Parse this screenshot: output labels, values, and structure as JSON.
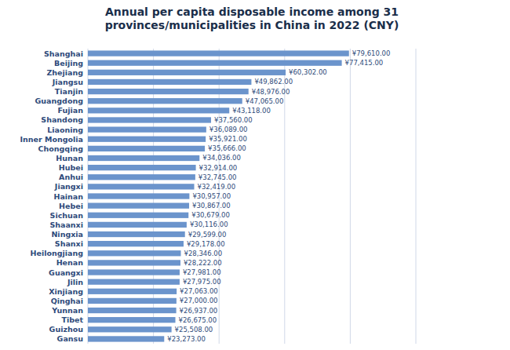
{
  "chart_data": {
    "type": "bar",
    "orientation": "horizontal",
    "title": "Annual per capita disposable income among 31\nprovinces/municipalities in China in 2022 (CNY)",
    "categories": [
      "Shanghai",
      "Beijing",
      "Zhejiang",
      "Jiangsu",
      "Tianjin",
      "Guangdong",
      "Fujian",
      "Shandong",
      "Liaoning",
      "Inner Mongolia",
      "Chongqing",
      "Hunan",
      "Hubei",
      "Anhui",
      "Jiangxi",
      "Hainan",
      "Hebei",
      "Sichuan",
      "Shaanxi",
      "Ningxia",
      "Shanxi",
      "Heilongjiang",
      "Henan",
      "Guangxi",
      "Jilin",
      "Xinjiang",
      "Qinghai",
      "Yunnan",
      "Tibet",
      "Guizhou",
      "Gansu"
    ],
    "values": [
      79610,
      77415,
      60302,
      49862,
      48976,
      47065,
      43118,
      37560,
      36089,
      35921,
      35666,
      34036,
      32914,
      32745,
      32419,
      30957,
      30867,
      30679,
      30116,
      29599,
      29178,
      28346,
      28222,
      27981,
      27975,
      27063,
      27000,
      26937,
      26675,
      25508,
      23273
    ],
    "value_labels": [
      "¥79,610.00",
      "¥77,415.00",
      "¥60,302.00",
      "¥49,862.00",
      "¥48,976.00",
      "¥47,065.00",
      "¥43,118.00",
      "¥37,560.00",
      "¥36,089.00",
      "¥35,921.00",
      "¥35,666.00",
      "¥34,036.00",
      "¥32,914.00",
      "¥32,745.00",
      "¥32,419.00",
      "¥30,957.00",
      "¥30,867.00",
      "¥30,679.00",
      "¥30,116.00",
      "¥29,599.00",
      "¥29,178.00",
      "¥28,346.00",
      "¥28,222.00",
      "¥27,981.00",
      "¥27,975.00",
      "¥27,063.00",
      "¥27,000.00",
      "¥26,937.00",
      "¥26,675.00",
      "¥25,508.00",
      "¥23,273.00"
    ],
    "color": "#6b94cc",
    "xlim": [
      0,
      100000
    ],
    "xticks": [
      0,
      20000,
      40000,
      60000,
      80000,
      100000
    ],
    "grid": true,
    "data_labels": true,
    "tick_labels": "y"
  }
}
